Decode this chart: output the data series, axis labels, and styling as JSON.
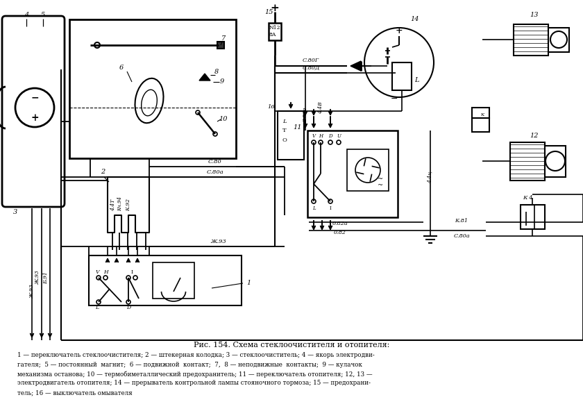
{
  "title": "Рис. 154. Схема стеклоочистителя и отопителя:",
  "caption_lines": [
    "1 — переключатель стеклоочистителя; 2 — штекерная колодка; 3 — стеклоочиститель; 4 — якорь электродви-",
    "гателя;  5 — постоянный  магнит;  6 — подвижной  контакт;  7,  8 — неподвижные  контакты;  9 — кулачок",
    "механизма останова; 10 — термобиметаллический предохранитель; 11 — переключатель отопителя; 12, 13 —",
    "электродвигатель отопителя; 14 — прерыватель контрольной лампы стояночного тормоза; 15 — предохрани-",
    "тель; 16 — выключатель омывателя"
  ],
  "bg_color": "#ffffff",
  "line_color": "#000000",
  "text_color": "#000000",
  "fig_width": 8.4,
  "fig_height": 5.92
}
